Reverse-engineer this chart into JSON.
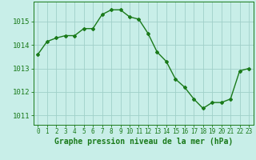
{
  "x": [
    0,
    1,
    2,
    3,
    4,
    5,
    6,
    7,
    8,
    9,
    10,
    11,
    12,
    13,
    14,
    15,
    16,
    17,
    18,
    19,
    20,
    21,
    22,
    23
  ],
  "y": [
    1013.6,
    1014.15,
    1014.3,
    1014.4,
    1014.4,
    1014.7,
    1014.7,
    1015.3,
    1015.5,
    1015.5,
    1015.2,
    1015.1,
    1014.5,
    1013.7,
    1013.3,
    1012.55,
    1012.2,
    1011.7,
    1011.3,
    1011.55,
    1011.55,
    1011.7,
    1012.9,
    1013.0
  ],
  "line_color": "#1a7a1a",
  "marker": "D",
  "marker_size": 2.0,
  "background_color": "#c8eee8",
  "grid_color": "#a0d0c8",
  "xlabel": "Graphe pression niveau de la mer (hPa)",
  "xlabel_fontsize": 7,
  "yticks": [
    1011,
    1012,
    1013,
    1014,
    1015
  ],
  "xticks": [
    0,
    1,
    2,
    3,
    4,
    5,
    6,
    7,
    8,
    9,
    10,
    11,
    12,
    13,
    14,
    15,
    16,
    17,
    18,
    19,
    20,
    21,
    22,
    23
  ],
  "ylim": [
    1010.6,
    1015.85
  ],
  "xlim": [
    -0.5,
    23.5
  ],
  "tick_color": "#1a7a1a",
  "ytick_fontsize": 6.5,
  "xtick_fontsize": 5.5,
  "line_width": 1.0
}
